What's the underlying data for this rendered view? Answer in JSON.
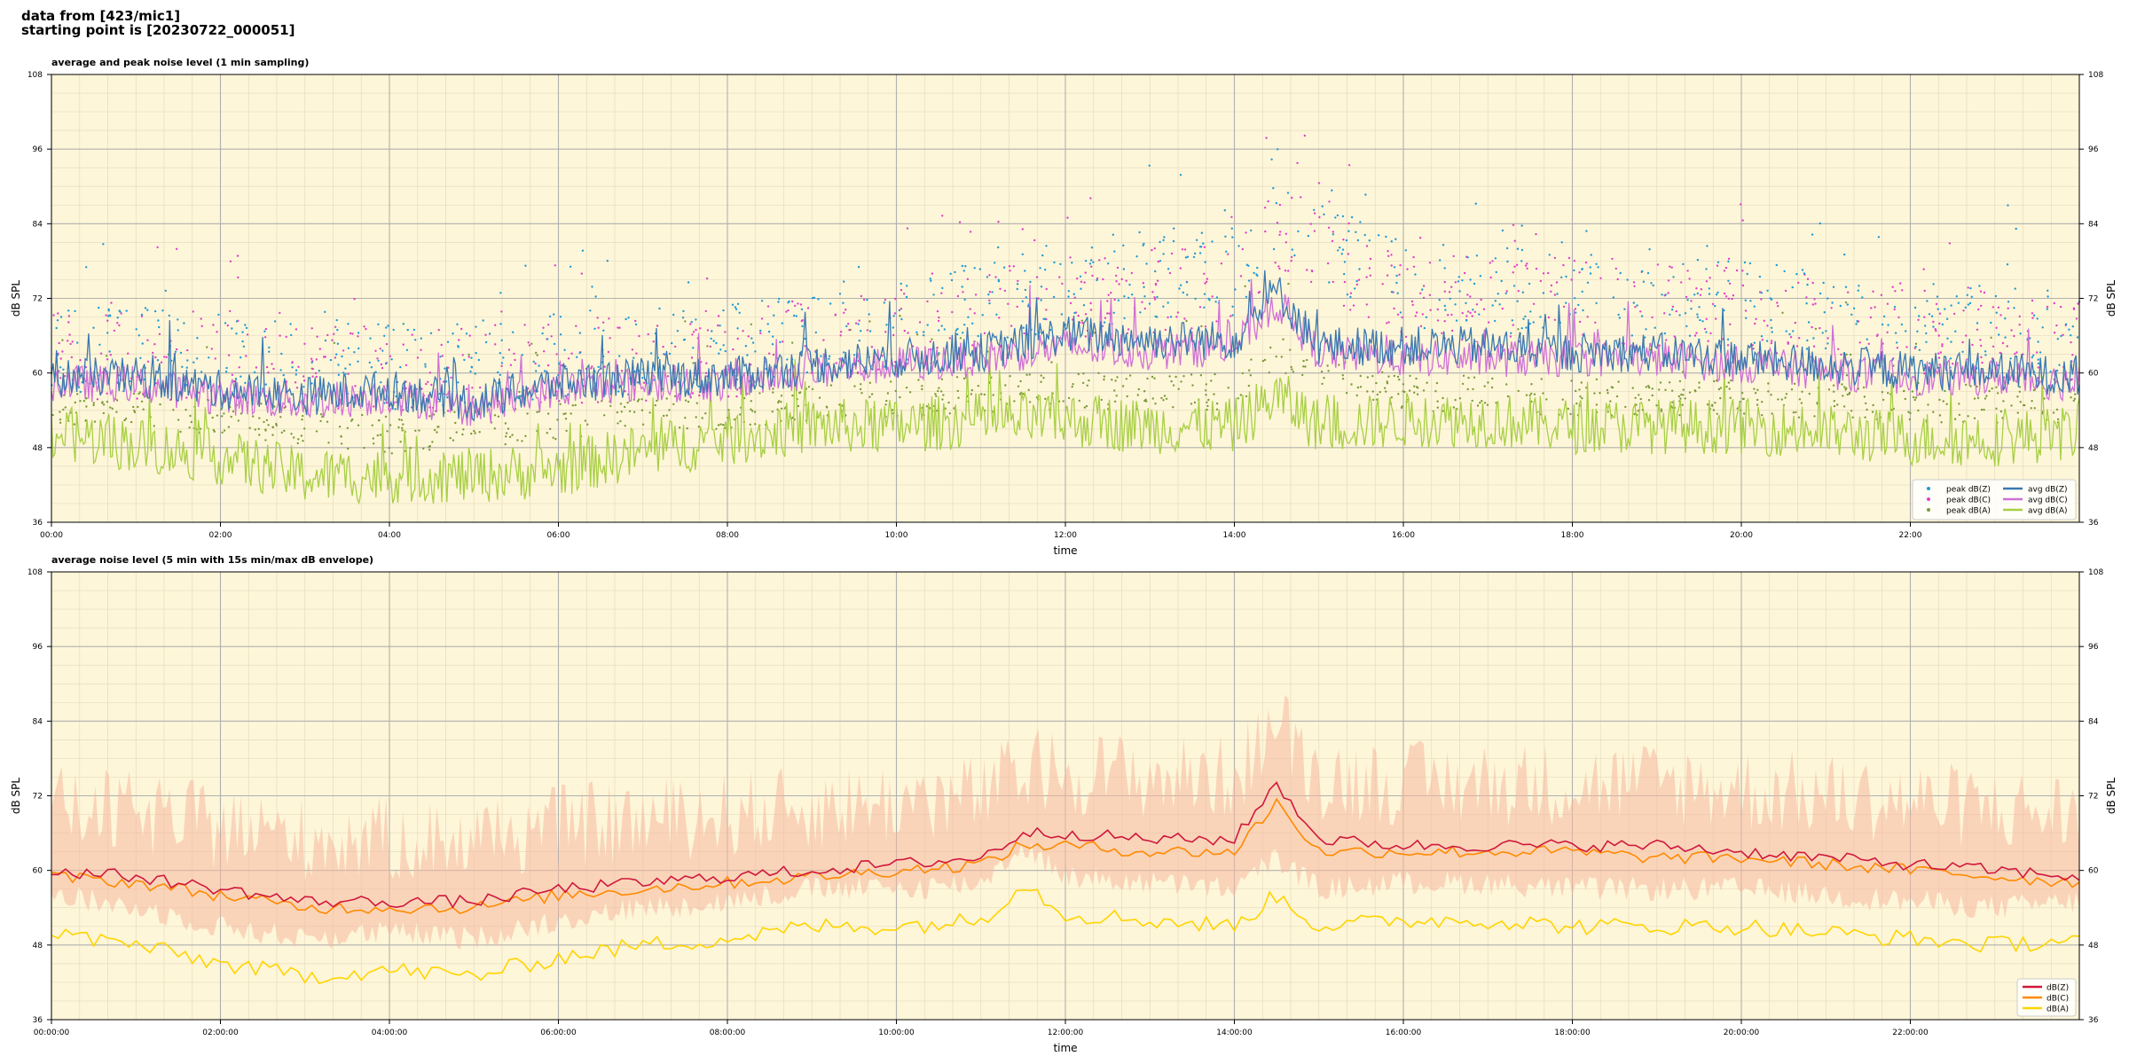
{
  "header": {
    "line1": "data from [423/mic1]",
    "line2": "starting point is [20230722_000051]"
  },
  "colors": {
    "plot_bg": "#fef6d8",
    "peak_z": "#1f9bd6",
    "peak_c": "#e040c8",
    "peak_a": "#7a9a3a",
    "avg_z": "#3a78b0",
    "avg_c": "#d070d8",
    "avg_a": "#a8cf45",
    "env": "#f5b8a0",
    "z5": "#d0183c",
    "c5": "#ff8a00",
    "a5": "#ffd400"
  },
  "chart_data": [
    {
      "type": "line",
      "title": "average and peak noise level (1 min sampling)",
      "xlabel": "time",
      "ylabel": "dB SPL",
      "ylabel_right": "dB SPL",
      "xlim": [
        0,
        24
      ],
      "ylim": [
        36,
        108
      ],
      "yticks": [
        "36",
        "48",
        "60",
        "72",
        "84",
        "96",
        "108"
      ],
      "xticks": [
        "00:00",
        "02:00",
        "04:00",
        "06:00",
        "08:00",
        "10:00",
        "12:00",
        "14:00",
        "16:00",
        "18:00",
        "20:00",
        "22:00"
      ],
      "grid": true,
      "legend_position": "lower-right",
      "legend": [
        "peak dB(Z)",
        "peak dB(C)",
        "peak dB(A)",
        "avg dB(Z)",
        "avg dB(C)",
        "avg dB(A)"
      ],
      "series": [
        {
          "name": "avg dB(Z)",
          "x": [
            0,
            1,
            2,
            3,
            4,
            5,
            6,
            7,
            8,
            9,
            10,
            11,
            12,
            13,
            14,
            14.5,
            15,
            16,
            17,
            18,
            19,
            20,
            21,
            22,
            23,
            24
          ],
          "values": [
            59,
            59,
            57,
            56,
            57,
            55,
            58,
            59,
            59,
            61,
            62,
            63,
            66,
            65,
            65,
            73,
            64,
            64,
            64,
            63,
            63,
            62,
            61,
            60,
            60,
            59
          ]
        },
        {
          "name": "avg dB(C)",
          "x": [
            0,
            1,
            2,
            3,
            4,
            5,
            6,
            7,
            8,
            9,
            10,
            11,
            12,
            13,
            14,
            14.5,
            15,
            16,
            17,
            18,
            19,
            20,
            21,
            22,
            23,
            24
          ],
          "values": [
            58,
            58,
            56,
            55,
            56,
            54,
            57,
            58,
            58,
            60,
            61,
            62,
            64,
            63,
            64,
            71,
            63,
            62,
            62,
            62,
            62,
            61,
            60,
            59,
            59,
            58
          ]
        },
        {
          "name": "avg dB(A)",
          "x": [
            0,
            1,
            2,
            3,
            4,
            5,
            6,
            7,
            8,
            9,
            10,
            11,
            12,
            13,
            14,
            14.5,
            15,
            16,
            17,
            18,
            19,
            20,
            21,
            22,
            23,
            24
          ],
          "values": [
            50,
            48,
            46,
            43,
            43,
            43,
            44,
            47,
            49,
            51,
            51,
            52,
            52,
            51,
            51,
            56,
            51,
            52,
            52,
            51,
            51,
            51,
            50,
            49,
            49,
            50
          ]
        },
        {
          "name": "peak dB(Z)",
          "x": [
            0,
            2,
            4,
            6,
            8,
            10,
            12,
            14,
            14.5,
            16,
            18,
            20,
            22,
            24
          ],
          "values": [
            64,
            63,
            61,
            63,
            64,
            68,
            74,
            76,
            86,
            74,
            73,
            71,
            68,
            66
          ]
        },
        {
          "name": "peak dB(C)",
          "x": [
            0,
            2,
            4,
            6,
            8,
            10,
            12,
            14,
            14.5,
            16,
            18,
            20,
            22,
            24
          ],
          "values": [
            63,
            62,
            60,
            62,
            63,
            67,
            72,
            74,
            84,
            72,
            72,
            70,
            67,
            65
          ]
        },
        {
          "name": "peak dB(A)",
          "x": [
            0,
            2,
            4,
            6,
            8,
            10,
            12,
            14,
            14.5,
            16,
            18,
            20,
            22,
            24
          ],
          "values": [
            55,
            53,
            50,
            52,
            54,
            56,
            57,
            57,
            63,
            57,
            56,
            56,
            55,
            55
          ]
        }
      ]
    },
    {
      "type": "line",
      "title": "average noise level (5 min with 15s min/max dB envelope)",
      "xlabel": "time",
      "ylabel": "dB SPL",
      "ylabel_right": "dB SPL",
      "xlim": [
        0,
        24
      ],
      "ylim": [
        36,
        108
      ],
      "yticks": [
        "36",
        "48",
        "60",
        "72",
        "84",
        "96",
        "108"
      ],
      "xticks": [
        "00:00:00",
        "02:00:00",
        "04:00:00",
        "06:00:00",
        "08:00:00",
        "10:00:00",
        "12:00:00",
        "14:00:00",
        "16:00:00",
        "18:00:00",
        "20:00:00",
        "22:00:00"
      ],
      "grid": true,
      "legend_position": "lower-right",
      "legend": [
        "dB(Z)",
        "dB(C)",
        "dB(A)"
      ],
      "series": [
        {
          "name": "dB(Z)",
          "x": [
            0,
            1,
            2,
            3,
            4,
            5,
            6,
            7,
            8,
            9,
            10,
            11,
            11.5,
            12,
            13,
            14,
            14.5,
            15,
            16,
            17,
            18,
            19,
            20,
            21,
            22,
            23,
            24
          ],
          "values": [
            60,
            59,
            57,
            55,
            55,
            55,
            57,
            58,
            59,
            60,
            61,
            62,
            66,
            66,
            65,
            65,
            74,
            65,
            64,
            64,
            64,
            64,
            63,
            62,
            61,
            60,
            59
          ]
        },
        {
          "name": "dB(C)",
          "x": [
            0,
            1,
            2,
            3,
            4,
            5,
            6,
            7,
            8,
            9,
            10,
            11,
            11.5,
            12,
            13,
            14,
            14.5,
            15,
            16,
            17,
            18,
            19,
            20,
            21,
            22,
            23,
            24
          ],
          "values": [
            59,
            58,
            56,
            54,
            54,
            54,
            56,
            57,
            58,
            59,
            60,
            61,
            64,
            64,
            63,
            63,
            71,
            63,
            63,
            63,
            63,
            62,
            62,
            61,
            60,
            59,
            58
          ]
        },
        {
          "name": "dB(A)",
          "x": [
            0,
            1,
            2,
            3,
            4,
            5,
            6,
            7,
            8,
            9,
            10,
            11,
            11.5,
            12,
            13,
            14,
            14.5,
            15,
            16,
            17,
            18,
            19,
            20,
            21,
            22,
            23,
            24
          ],
          "values": [
            50,
            48,
            45,
            43,
            44,
            43,
            46,
            48,
            49,
            51,
            51,
            52,
            58,
            53,
            52,
            51,
            56,
            51,
            52,
            52,
            51,
            51,
            51,
            50,
            49,
            48,
            49
          ]
        }
      ]
    }
  ]
}
